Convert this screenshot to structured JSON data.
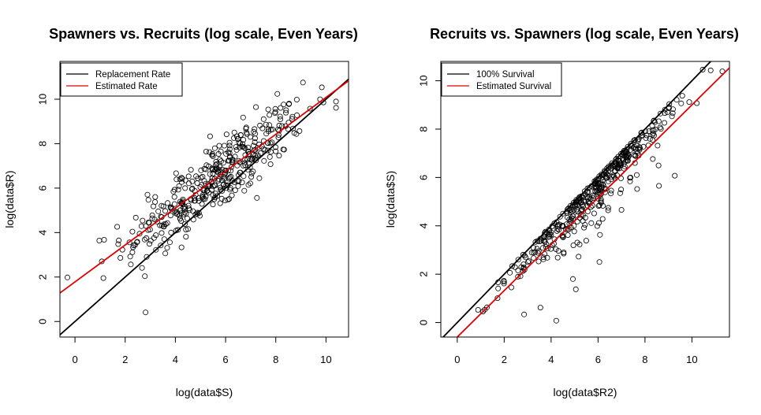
{
  "chart_data": [
    {
      "type": "scatter",
      "title": "Spawners vs. Recruits (log scale, Even Years)",
      "xlabel": "log(data$S)",
      "ylabel": "log(data$R)",
      "xlim": [
        -0.6,
        10.9
      ],
      "ylim": [
        -0.7,
        11.7
      ],
      "xticks": [
        0,
        2,
        4,
        6,
        8,
        10
      ],
      "yticks": [
        0,
        2,
        4,
        6,
        8,
        10
      ],
      "legend": {
        "position": "top-left",
        "entries": [
          {
            "label": "Replacement Rate",
            "color": "#000000"
          },
          {
            "label": "Estimated Rate",
            "color": "#e00000"
          }
        ]
      },
      "lines": [
        {
          "name": "Replacement Rate",
          "color": "#000000",
          "intercept": 0,
          "slope": 1
        },
        {
          "name": "Estimated Rate",
          "color": "#e00000",
          "intercept": 1.78,
          "slope": 0.83
        }
      ],
      "points_model": {
        "n": 420,
        "x_mean": 5.6,
        "x_sd": 1.8,
        "x_range": [
          -0.3,
          10.4
        ],
        "relation": "y = 1.78 + 0.83*x + noise",
        "noise_sd": 0.95
      }
    },
    {
      "type": "scatter",
      "title": "Recruits vs. Spawners (log scale, Even Years)",
      "xlabel": "log(data$R2)",
      "ylabel": "log(data$S)",
      "xlim": [
        -0.7,
        11.6
      ],
      "ylim": [
        -0.6,
        10.8
      ],
      "xticks": [
        0,
        2,
        4,
        6,
        8,
        10
      ],
      "yticks": [
        0,
        2,
        4,
        6,
        8,
        10
      ],
      "legend": {
        "position": "top-left",
        "entries": [
          {
            "label": "100% Survival",
            "color": "#000000"
          },
          {
            "label": "Estimated Survival",
            "color": "#e00000"
          }
        ]
      },
      "lines": [
        {
          "name": "100% Survival",
          "color": "#000000",
          "intercept": 0,
          "slope": 1
        },
        {
          "name": "Estimated Survival",
          "color": "#e00000",
          "intercept": -0.6,
          "slope": 0.96
        }
      ],
      "points_model": {
        "n": 420,
        "x_range": [
          -0.2,
          11.3
        ],
        "relation": "y = x - |noise| (points lie on or below 1:1 line)",
        "noise_sd": 0.75
      }
    }
  ]
}
